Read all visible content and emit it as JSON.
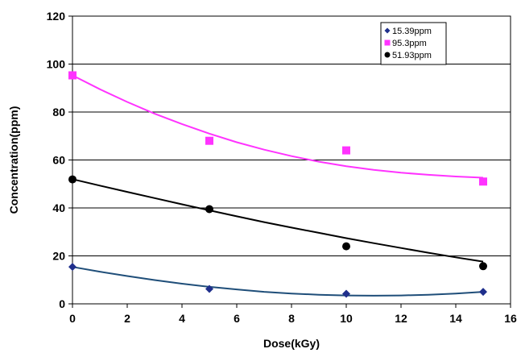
{
  "chart_data": {
    "type": "scatter",
    "xlabel": "Dose(kGy)",
    "ylabel": "Concentration(ppm)",
    "xlim": [
      0,
      16
    ],
    "ylim": [
      0,
      120
    ],
    "x_ticks": [
      "0",
      "2",
      "4",
      "6",
      "8",
      "10",
      "12",
      "14",
      "16"
    ],
    "y_ticks": [
      "0",
      "20",
      "40",
      "60",
      "80",
      "100",
      "120"
    ],
    "grid": "horizontal",
    "legend_position": "top-right",
    "series": [
      {
        "name": "15.39ppm",
        "marker": "diamond",
        "color": "#1f2f8c",
        "x": [
          0,
          5,
          10,
          15
        ],
        "y": [
          15.4,
          6.2,
          4.2,
          5.0
        ],
        "trend_color": "#1f4e79",
        "trend": [
          [
            0,
            15.4
          ],
          [
            1,
            13.4
          ],
          [
            2,
            11.6
          ],
          [
            3,
            9.9
          ],
          [
            4,
            8.4
          ],
          [
            5,
            7.1
          ],
          [
            6,
            6.0
          ],
          [
            7,
            5.0
          ],
          [
            8,
            4.3
          ],
          [
            9,
            3.8
          ],
          [
            10,
            3.5
          ],
          [
            11,
            3.4
          ],
          [
            12,
            3.5
          ],
          [
            13,
            3.8
          ],
          [
            14,
            4.3
          ],
          [
            15,
            5.0
          ]
        ]
      },
      {
        "name": "95.3ppm",
        "marker": "square",
        "color": "#ff33ff",
        "x": [
          0,
          5,
          10,
          15
        ],
        "y": [
          95.3,
          68.0,
          64.0,
          51.0
        ],
        "trend_color": "#ff33ff",
        "trend": [
          [
            0,
            95.3
          ],
          [
            1,
            89.5
          ],
          [
            2,
            84.2
          ],
          [
            3,
            79.3
          ],
          [
            4,
            75.0
          ],
          [
            5,
            71.0
          ],
          [
            6,
            67.4
          ],
          [
            7,
            64.3
          ],
          [
            8,
            61.6
          ],
          [
            9,
            59.3
          ],
          [
            10,
            57.4
          ],
          [
            11,
            55.9
          ],
          [
            12,
            54.7
          ],
          [
            13,
            53.8
          ],
          [
            14,
            53.1
          ],
          [
            15,
            52.6
          ]
        ]
      },
      {
        "name": "51.93ppm",
        "marker": "circle",
        "color": "#000000",
        "x": [
          0,
          5,
          10,
          15
        ],
        "y": [
          51.9,
          39.5,
          24.0,
          15.7
        ],
        "trend_color": "#000000",
        "trend": [
          [
            0,
            52.0
          ],
          [
            1,
            49.3
          ],
          [
            2,
            46.7
          ],
          [
            3,
            44.1
          ],
          [
            4,
            41.5
          ],
          [
            5,
            39.0
          ],
          [
            6,
            36.5
          ],
          [
            7,
            34.1
          ],
          [
            8,
            31.8
          ],
          [
            9,
            29.6
          ],
          [
            10,
            27.4
          ],
          [
            11,
            25.3
          ],
          [
            12,
            23.3
          ],
          [
            13,
            21.3
          ],
          [
            14,
            19.4
          ],
          [
            15,
            17.6
          ]
        ]
      }
    ]
  }
}
